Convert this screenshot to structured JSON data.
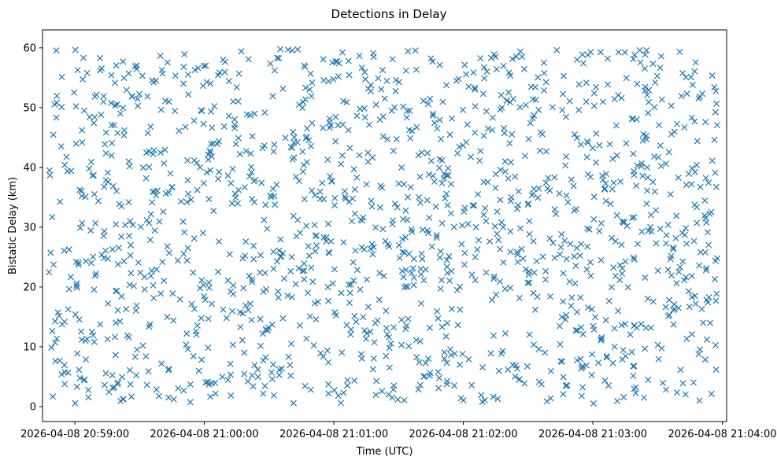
{
  "chart_data": {
    "type": "scatter",
    "title": "Detections in Delay",
    "xlabel": "Time (UTC)",
    "ylabel": "Bistatic Delay (km)",
    "x_axis_kind": "time",
    "xlim": [
      "2026-04-08 20:58:45",
      "2026-04-08 21:04:02"
    ],
    "ylim": [
      -2.5,
      63
    ],
    "x_ticks": [
      "2026-04-08 20:59:00",
      "2026-04-08 21:00:00",
      "2026-04-08 21:01:00",
      "2026-04-08 21:02:00",
      "2026-04-08 21:03:00",
      "2026-04-08 21:04:00"
    ],
    "x_tick_labels": [
      "2026-04-08 20:59:00",
      "2026-04-08 21:00:00",
      "2026-04-08 21:01:00",
      "2026-04-08 21:02:00",
      "2026-04-08 21:03:00",
      "2026-04-08 21:04:00"
    ],
    "y_ticks": [
      0,
      10,
      20,
      30,
      40,
      50,
      60
    ],
    "y_tick_labels": [
      "0",
      "10",
      "20",
      "30",
      "40",
      "50",
      "60"
    ],
    "time_start": "2026-04-08 20:58:48",
    "time_end": "2026-04-08 21:03:58",
    "delay_min": 0.5,
    "delay_max": 59.8,
    "point_count": 1500,
    "marker": "x",
    "grid": false,
    "legend": "none",
    "color": "#1f77b4"
  }
}
